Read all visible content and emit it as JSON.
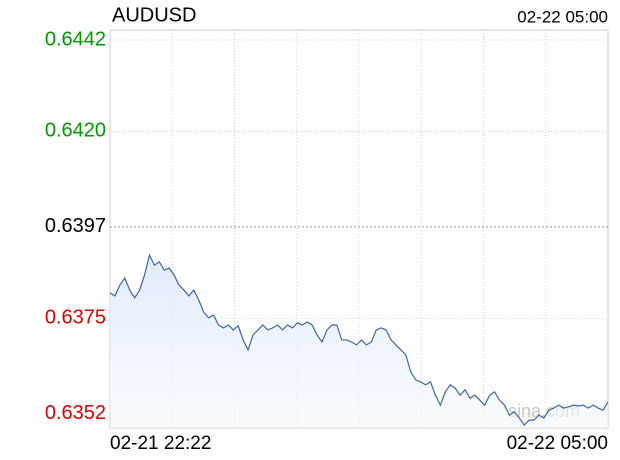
{
  "chart_data": {
    "type": "line",
    "title": "AUDUSD",
    "top_right_label": "02-22 05:00",
    "watermark": "sina.com",
    "x_labels": [
      "02-21 22:22",
      "02-22 05:00"
    ],
    "ylim": [
      0.63486,
      0.64444
    ],
    "yticks": [
      0.6442,
      0.642,
      0.6397,
      0.6375,
      0.6352
    ],
    "ytick_labels": [
      "0.6442",
      "0.6420",
      "0.6397",
      "0.6375",
      "0.6352"
    ],
    "ytick_colors": [
      "#009900",
      "#009900",
      "#000000",
      "#dd0000",
      "#dd0000"
    ],
    "grid": true,
    "series": [
      {
        "name": "AUDUSD",
        "color": "#3d65b0",
        "values": [
          0.63811,
          0.63804,
          0.6383,
          0.63847,
          0.63818,
          0.63799,
          0.63818,
          0.63854,
          0.63902,
          0.63878,
          0.63886,
          0.63866,
          0.63871,
          0.63854,
          0.6383,
          0.63818,
          0.63804,
          0.63818,
          0.63794,
          0.63765,
          0.63751,
          0.63758,
          0.63734,
          0.63727,
          0.63734,
          0.63722,
          0.63732,
          0.63698,
          0.63674,
          0.6371,
          0.63722,
          0.63734,
          0.63722,
          0.63727,
          0.63734,
          0.63722,
          0.63734,
          0.63727,
          0.63739,
          0.63734,
          0.63741,
          0.63734,
          0.6371,
          0.63693,
          0.63722,
          0.63734,
          0.63734,
          0.63698,
          0.63698,
          0.63693,
          0.63686,
          0.63698,
          0.63686,
          0.63693,
          0.63722,
          0.63727,
          0.63722,
          0.63698,
          0.63686,
          0.63674,
          0.63662,
          0.63621,
          0.63602,
          0.63597,
          0.6359,
          0.63597,
          0.63565,
          0.63541,
          0.63573,
          0.6359,
          0.63582,
          0.63565,
          0.63578,
          0.63558,
          0.63565,
          0.63553,
          0.63541,
          0.63565,
          0.63573,
          0.63553,
          0.63541,
          0.63517,
          0.63525,
          0.6351,
          0.63493,
          0.63505,
          0.63505,
          0.63517,
          0.6351,
          0.63529,
          0.63534,
          0.63541,
          0.63534,
          0.63537,
          0.63541,
          0.63539,
          0.63541,
          0.63534,
          0.63541,
          0.63534,
          0.63529,
          0.63549
        ]
      }
    ]
  }
}
